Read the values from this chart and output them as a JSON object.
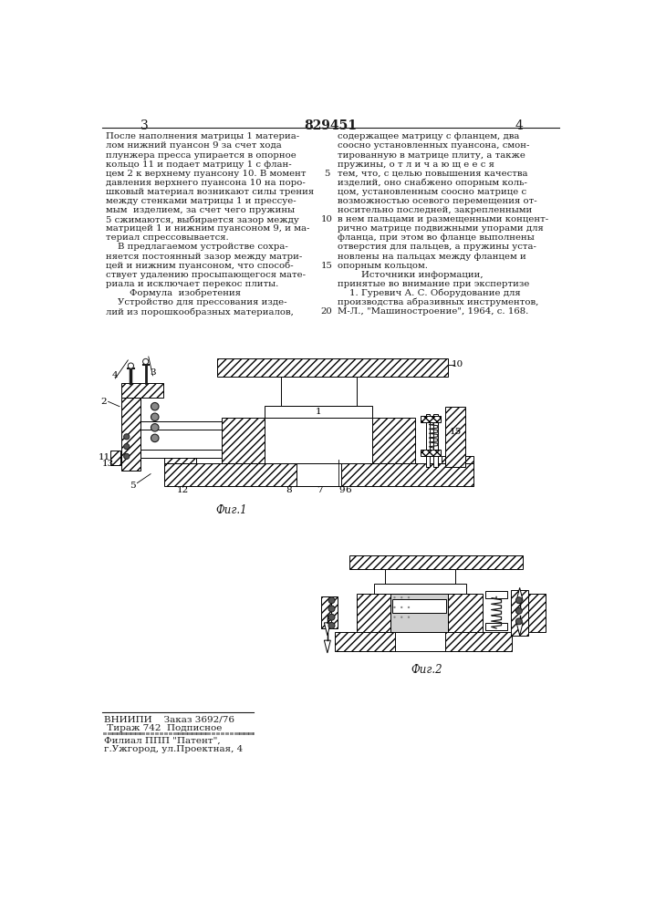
{
  "page_number_left": "3",
  "page_number_center": "829451",
  "page_number_right": "4",
  "col1_lines": [
    "После наполнения матрицы 1 материа-",
    "лом нижний пуансон 9 за счет хода",
    "плунжера пресса упирается в опорное",
    "кольцо 11 и подает матрицу 1 с флан-",
    "цем 2 к верхнему пуансону 10. В момент",
    "давления верхнего пуансона 10 на поро-",
    "шковый материал возникают силы трения",
    "между стенками матрицы 1 и прессуе-",
    "мым  изделием, за счет чего пружины",
    "5 сжимаются, выбирается зазор между",
    "матрицей 1 и нижним пуансоном 9, и ма-",
    "териал спрессовывается.",
    "    В предлагаемом устройстве сохра-",
    "няется постоянный зазор между матри-",
    "цей и нижним пуансоном, что способ-",
    "ствует удалению просыпающегося мате-",
    "риала и исключает перекос плиты.",
    "        Формула  изобретения",
    "    Устройство для прессования изде-",
    "лий из порошкообразных материалов,"
  ],
  "col2_lines": [
    "содержащее матрицу с фланцем, два",
    "соосно установленных пуансона, смон-",
    "тированную в матрице плиту, а также",
    "пружины, о т л и ч а ю щ е е с я",
    "тем, что, с целью повышения качества",
    "изделий, оно снабжено опорным коль-",
    "цом, установленным соосно матрице с",
    "возможностью осевого перемещения от-",
    "носительно последней, закрепленными",
    "в нем пальцами и размещенными концент-",
    "рично матрице подвижными упорами для",
    "фланца, при этом во фланце выполнены",
    "отверстия для пальцев, а пружины уста-",
    "новлены на пальцах между фланцем и",
    "опорным кольцом.",
    "        Источники информации,",
    "принятые во внимание при экспертизе",
    "    1. Гуревич А. С. Оборудование для",
    "производства абразивных инструментов,",
    "М-Л., \"Машиностроение\", 1964, с. 168."
  ],
  "fig1_label": "Фиг.1",
  "fig2_label": "Фиг.2",
  "footer_line1": "ВНИИПИ    Заказ 3692/76",
  "footer_line2": " Тираж 742  Подписное",
  "footer_line3": "Филиал ППП \"Патент\",",
  "footer_line4": "г.Ужгород, ул.Проектная, 4",
  "bg_color": "#ffffff",
  "text_color": "#1a1a1a",
  "line_color": "#1a1a1a"
}
